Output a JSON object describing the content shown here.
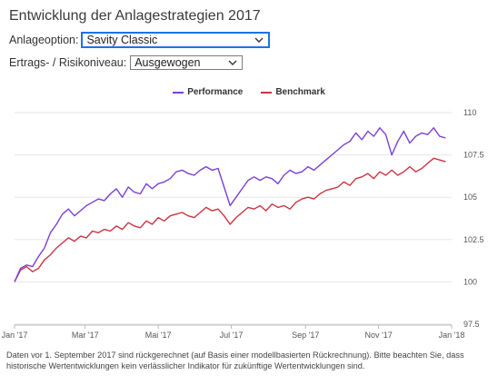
{
  "page": {
    "title": "Entwicklung der Anlagestrategien 2017",
    "footnote": "Daten vor 1. September 2017 sind rückgerechnet (auf Basis einer modellbasierten Rückrechnung). Bitte beachten Sie, dass historische Wertentwicklungen kein verlässlicher Indikator für zukünftige Wertentwicklungen sind."
  },
  "controls": {
    "option_label": "Anlageoption:",
    "option_value": "Savity Classic",
    "risk_label": "Ertrags- / Risikoniveau:",
    "risk_value": "Ausgewogen"
  },
  "colors": {
    "performance": "#7b3fd6",
    "benchmark": "#cc3340",
    "grid": "#e6e6e6",
    "focus": "#1a73e8"
  },
  "chart_data": {
    "type": "line",
    "ylim": [
      97.5,
      110
    ],
    "y_ticks": [
      "110",
      "107.5",
      "105",
      "102.5",
      "100",
      "97.5"
    ],
    "y_tick_values": [
      110,
      107.5,
      105,
      102.5,
      100,
      97.5
    ],
    "x_tick_labels": [
      "Jan '17",
      "Mar '17",
      "Mai '17",
      "Jul '17",
      "Sep '17",
      "Nov '17",
      "Jan '18"
    ],
    "x_tick_positions": [
      0,
      59,
      120,
      181,
      243,
      304,
      365
    ],
    "legend_position": "top-center",
    "series": [
      {
        "name": "Performance",
        "x": [
          0,
          5,
          10,
          15,
          20,
          25,
          30,
          35,
          40,
          45,
          50,
          55,
          60,
          65,
          70,
          75,
          80,
          85,
          90,
          95,
          100,
          105,
          110,
          115,
          120,
          125,
          130,
          135,
          140,
          145,
          150,
          155,
          160,
          165,
          170,
          175,
          180,
          185,
          190,
          195,
          200,
          205,
          210,
          215,
          220,
          225,
          230,
          235,
          240,
          245,
          250,
          255,
          260,
          265,
          270,
          275,
          280,
          285,
          290,
          295,
          300,
          305,
          310,
          315,
          320,
          325,
          330,
          335,
          340,
          345,
          350,
          355,
          360
        ],
        "y": [
          100.0,
          100.8,
          101.0,
          100.9,
          101.5,
          102.0,
          102.9,
          103.4,
          104.0,
          104.3,
          103.9,
          104.2,
          104.5,
          104.7,
          104.9,
          104.8,
          105.2,
          105.5,
          105.0,
          105.6,
          105.3,
          105.2,
          105.8,
          105.5,
          105.8,
          105.9,
          106.1,
          106.5,
          106.6,
          106.4,
          106.3,
          106.6,
          106.8,
          106.6,
          106.7,
          105.6,
          104.5,
          105.0,
          105.5,
          106.0,
          106.2,
          106.0,
          106.2,
          106.1,
          105.8,
          106.3,
          106.6,
          106.4,
          106.5,
          106.8,
          106.6,
          106.9,
          107.2,
          107.5,
          107.8,
          108.1,
          108.3,
          108.8,
          108.4,
          108.9,
          108.6,
          109.1,
          108.7,
          107.5,
          108.3,
          108.9,
          108.2,
          108.6,
          108.8,
          108.7,
          109.1,
          108.6,
          108.5
        ]
      },
      {
        "name": "Benchmark",
        "x": [
          0,
          5,
          10,
          15,
          20,
          25,
          30,
          35,
          40,
          45,
          50,
          55,
          60,
          65,
          70,
          75,
          80,
          85,
          90,
          95,
          100,
          105,
          110,
          115,
          120,
          125,
          130,
          135,
          140,
          145,
          150,
          155,
          160,
          165,
          170,
          175,
          180,
          185,
          190,
          195,
          200,
          205,
          210,
          215,
          220,
          225,
          230,
          235,
          240,
          245,
          250,
          255,
          260,
          265,
          270,
          275,
          280,
          285,
          290,
          295,
          300,
          305,
          310,
          315,
          320,
          325,
          330,
          335,
          340,
          345,
          350,
          355,
          360
        ],
        "y": [
          100.0,
          100.7,
          100.9,
          100.6,
          100.8,
          101.3,
          101.6,
          102.0,
          102.3,
          102.6,
          102.4,
          102.7,
          102.6,
          103.0,
          102.9,
          103.1,
          103.0,
          103.3,
          103.1,
          103.5,
          103.3,
          103.2,
          103.6,
          103.4,
          103.8,
          103.6,
          103.9,
          104.0,
          104.1,
          103.9,
          103.8,
          104.1,
          104.4,
          104.2,
          104.3,
          103.9,
          103.4,
          103.8,
          104.1,
          104.4,
          104.3,
          104.5,
          104.2,
          104.6,
          104.4,
          104.5,
          104.3,
          104.7,
          104.9,
          105.0,
          104.9,
          105.2,
          105.4,
          105.5,
          105.6,
          105.9,
          105.7,
          106.1,
          106.2,
          106.4,
          106.1,
          106.5,
          106.3,
          106.6,
          106.3,
          106.5,
          106.8,
          106.5,
          106.7,
          107.0,
          107.3,
          107.2,
          107.1
        ]
      }
    ]
  }
}
